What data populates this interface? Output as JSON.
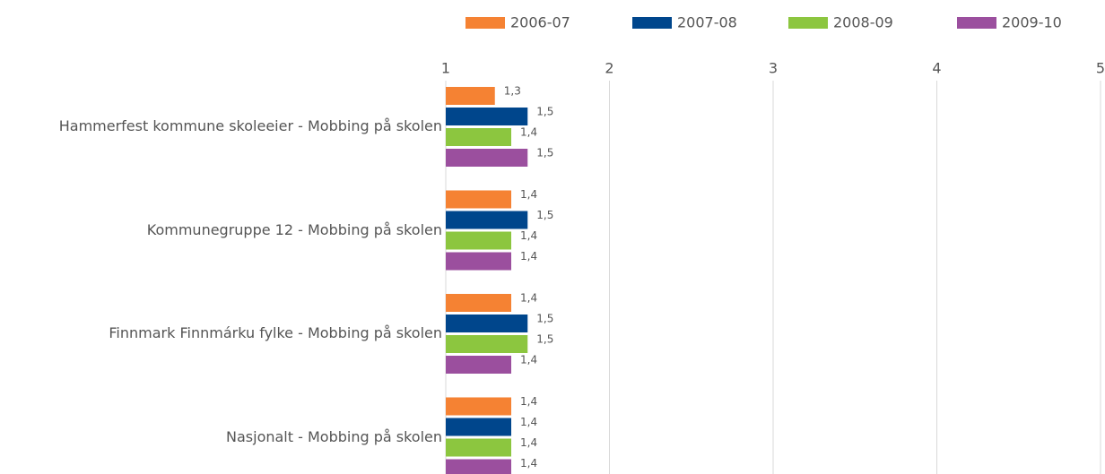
{
  "chart_data": {
    "type": "barh",
    "categories": [
      "Hammerfest kommune skoleeier - Mobbing på skolen",
      "Kommunegruppe 12 - Mobbing på skolen",
      "Finnmark Finnmárku fylke - Mobbing på skolen",
      "Nasjonalt - Mobbing på skolen"
    ],
    "series": [
      {
        "name": "2006-07",
        "color": "#f58233",
        "values": [
          1.3,
          1.4,
          1.4,
          1.4
        ],
        "value_labels": [
          "1,3",
          "1,4",
          "1,4",
          "1,4"
        ]
      },
      {
        "name": "2007-08",
        "color": "#00468c",
        "values": [
          1.5,
          1.5,
          1.5,
          1.4
        ],
        "value_labels": [
          "1,5",
          "1,5",
          "1,5",
          "1,4"
        ]
      },
      {
        "name": "2008-09",
        "color": "#8cc63f",
        "values": [
          1.4,
          1.4,
          1.5,
          1.4
        ],
        "value_labels": [
          "1,4",
          "1,4",
          "1,5",
          "1,4"
        ]
      },
      {
        "name": "2009-10",
        "color": "#9b4f9e",
        "values": [
          1.5,
          1.4,
          1.4,
          1.4
        ],
        "value_labels": [
          "1,5",
          "1,4",
          "1,4",
          "1,4"
        ]
      }
    ],
    "xlim": [
      1,
      5
    ],
    "xticks": [
      1,
      2,
      3,
      4,
      5
    ],
    "grid": true,
    "legend": "top-right"
  }
}
